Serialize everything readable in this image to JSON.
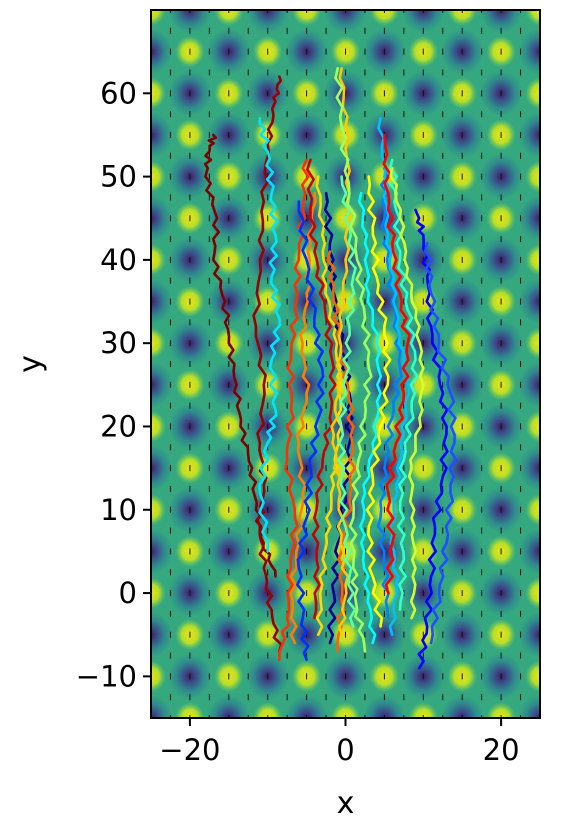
{
  "chart_data": {
    "type": "line",
    "title": "",
    "xlabel": "x",
    "ylabel": "y",
    "xlim": [
      -25,
      25
    ],
    "ylim": [
      -15,
      70
    ],
    "xticks": [
      -20,
      0,
      20
    ],
    "yticks": [
      -10,
      0,
      10,
      20,
      30,
      40,
      50,
      60
    ],
    "xtick_labels": [
      "−20",
      "0",
      "20"
    ],
    "ytick_labels": [
      "−10",
      "0",
      "10",
      "20",
      "30",
      "40",
      "50",
      "60"
    ],
    "grid": false,
    "background": {
      "type": "contour-heatmap",
      "pattern": "periodic-lattice",
      "period": 5,
      "colormap": "viridis",
      "overlay": "quiver-arrows"
    },
    "series_colormap": "jet",
    "series": [
      {
        "color": "#7f0000",
        "x": [
          -9,
          -10.5,
          -11.5,
          -12,
          -13.5,
          -14,
          -15,
          -15.5,
          -17,
          -16.5,
          -18,
          -17.5,
          -17
        ],
        "y": [
          2,
          6,
          10,
          15,
          20,
          25,
          30,
          35,
          40,
          45,
          50,
          53,
          55
        ]
      },
      {
        "color": "#990000",
        "x": [
          -8.5,
          -9.5,
          -10.5,
          -11,
          -10.5,
          -11,
          -10.5,
          -11.5,
          -11,
          -10.5,
          -10,
          -9,
          -8.5
        ],
        "y": [
          -7,
          -2,
          3,
          8,
          13,
          18,
          25,
          32,
          40,
          47,
          54,
          59,
          62
        ]
      },
      {
        "color": "#00e5ff",
        "x": [
          -10,
          -11,
          -10,
          -9,
          -9.5,
          -8.5,
          -9.5,
          -9,
          -9.5,
          -10,
          -11
        ],
        "y": [
          5,
          12,
          18,
          22,
          28,
          33,
          38,
          43,
          48,
          53,
          57
        ]
      },
      {
        "color": "#ff3000",
        "x": [
          -8.5,
          -7.5,
          -7,
          -6.5,
          -7.5,
          -7,
          -7,
          -6.5,
          -6,
          -5.5,
          -5
        ],
        "y": [
          -8,
          -3,
          3,
          9,
          16,
          22,
          28,
          34,
          40,
          46,
          52
        ]
      },
      {
        "color": "#ff8000",
        "x": [
          -6.5,
          -7,
          -6,
          -5.5,
          -6,
          -5,
          -5.5,
          -5,
          -4.5,
          -4
        ],
        "y": [
          -6,
          0,
          6,
          12,
          18,
          24,
          30,
          36,
          42,
          48
        ]
      },
      {
        "color": "#0030ff",
        "x": [
          -5,
          -5.5,
          -6,
          -5,
          -4.5,
          -3.5,
          -3,
          -4,
          -5,
          -6
        ],
        "y": [
          -8,
          -3,
          3,
          9,
          15,
          21,
          27,
          33,
          40,
          47
        ]
      },
      {
        "color": "#c80000",
        "x": [
          -4,
          -3.5,
          -4,
          -3,
          -2,
          -1.5,
          -2.5,
          -3.5,
          -4.5,
          -4.5
        ],
        "y": [
          -3,
          3,
          9,
          15,
          21,
          27,
          33,
          39,
          45,
          52
        ]
      },
      {
        "color": "#ffd800",
        "x": [
          -3.5,
          -3,
          -2.5,
          -1.5,
          -1,
          -0.5,
          -1.5,
          -2.5,
          -3,
          -3.5
        ],
        "y": [
          -5,
          1,
          7,
          13,
          19,
          25,
          31,
          37,
          43,
          50
        ]
      },
      {
        "color": "#00008f",
        "x": [
          -2,
          -1.5,
          -1,
          0,
          0.5,
          0.5,
          -0.5,
          -1.5,
          -2,
          -2.5
        ],
        "y": [
          -6,
          0,
          6,
          12,
          18,
          24,
          30,
          36,
          42,
          48
        ]
      },
      {
        "color": "#ff6000",
        "x": [
          -1,
          -0.5,
          -0.5,
          0.5,
          1,
          0.5,
          -0.5,
          -1.5,
          -2
        ],
        "y": [
          -7,
          -1,
          5,
          11,
          17,
          23,
          29,
          35,
          41
        ]
      },
      {
        "color": "#ffc800",
        "x": [
          -0.5,
          0,
          -0.5,
          -1,
          -1.5,
          -1,
          -0.5,
          0,
          0.5,
          0,
          -0.5
        ],
        "y": [
          -5,
          1,
          7,
          13,
          19,
          25,
          32,
          40,
          48,
          56,
          63
        ]
      },
      {
        "color": "#60ff9f",
        "x": [
          1,
          0.5,
          0,
          -0.5,
          -0.5,
          0,
          0.5,
          1,
          0.5,
          -0.5
        ],
        "y": [
          -4,
          2,
          8,
          14,
          20,
          26,
          32,
          38,
          44,
          50
        ]
      },
      {
        "color": "#9fff60",
        "x": [
          2.5,
          1.5,
          1,
          1,
          1.5,
          2.5,
          3,
          2.5,
          1.5,
          0.5,
          -0.5,
          -1
        ],
        "y": [
          -7,
          -2,
          3,
          9,
          15,
          21,
          27,
          33,
          40,
          48,
          56,
          63
        ]
      },
      {
        "color": "#00ffff",
        "x": [
          3.5,
          3,
          2,
          2.5,
          3.5,
          4.5,
          4,
          3,
          2.5,
          2
        ],
        "y": [
          -6,
          0,
          6,
          12,
          18,
          24,
          30,
          36,
          42,
          48
        ]
      },
      {
        "color": "#ffff00",
        "x": [
          4.5,
          3.5,
          3,
          3.5,
          4.5,
          5.5,
          5,
          4,
          3.5,
          3
        ],
        "y": [
          -4,
          2,
          8,
          14,
          20,
          26,
          32,
          38,
          44,
          50
        ]
      },
      {
        "color": "#0080ff",
        "x": [
          5.5,
          5,
          4.5,
          5,
          6,
          7,
          6.5,
          5.5,
          5,
          5
        ],
        "y": [
          -3,
          3,
          9,
          15,
          21,
          27,
          33,
          39,
          45,
          51
        ]
      },
      {
        "color": "#00c0ff",
        "x": [
          6,
          6.5,
          6,
          6.5,
          7.5,
          8,
          7,
          6,
          5.5,
          5,
          4.5
        ],
        "y": [
          -5,
          1,
          7,
          13,
          19,
          25,
          31,
          37,
          43,
          50,
          57
        ]
      },
      {
        "color": "#ff0000",
        "x": [
          5.5,
          6,
          5.5,
          6.5,
          7.5,
          8,
          7,
          6,
          5.5,
          5
        ],
        "y": [
          0,
          6,
          12,
          18,
          24,
          30,
          36,
          42,
          48,
          55
        ]
      },
      {
        "color": "#30ffcf",
        "x": [
          7,
          7.5,
          7,
          7.5,
          8.5,
          9,
          8,
          7,
          6.5,
          6
        ],
        "y": [
          -2,
          4,
          10,
          16,
          22,
          28,
          34,
          40,
          46,
          52
        ]
      },
      {
        "color": "#cfff30",
        "x": [
          8.5,
          9,
          8.5,
          8.5,
          9.5,
          10,
          9,
          8,
          7,
          6
        ],
        "y": [
          -3,
          3,
          9,
          15,
          21,
          27,
          33,
          39,
          45,
          51
        ]
      },
      {
        "color": "#0000ff",
        "x": [
          9.5,
          10.5,
          11,
          11.5,
          12.5,
          13,
          12,
          11,
          10.5,
          10,
          9
        ],
        "y": [
          -9,
          -4,
          2,
          8,
          14,
          20,
          26,
          32,
          38,
          43,
          46
        ]
      },
      {
        "color": "#1e50ff",
        "x": [
          11,
          12,
          13,
          13.5,
          14,
          13.5,
          12,
          11,
          10.5
        ],
        "y": [
          -6,
          0,
          6,
          12,
          18,
          24,
          30,
          36,
          42
        ]
      }
    ]
  }
}
